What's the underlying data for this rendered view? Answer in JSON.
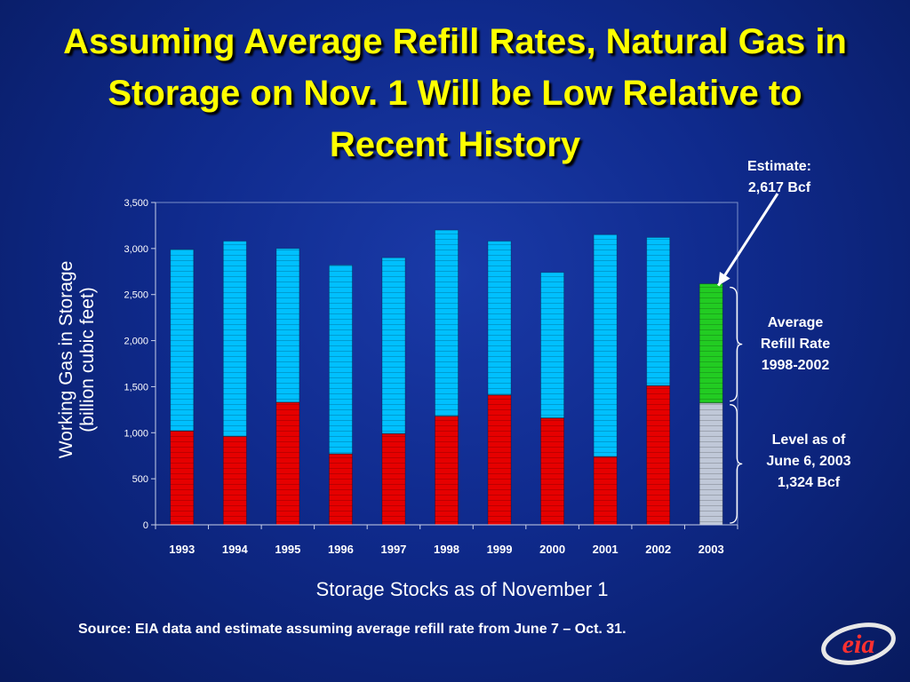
{
  "slide": {
    "title_lines": [
      "Assuming Average Refill Rates, Natural Gas in",
      "Storage on Nov. 1 Will be Low Relative to",
      "Recent History"
    ],
    "source": "Source: EIA data and estimate assuming average refill rate from June 7 – Oct. 31.",
    "logo_text": "eia"
  },
  "annotations": {
    "estimate": [
      "Estimate:",
      "2,617 Bcf"
    ],
    "average_refill": [
      "Average",
      "Refill Rate",
      "1998-2002"
    ],
    "level": [
      "Level as of",
      "June 6, 2003",
      "1,324 Bcf"
    ]
  },
  "colors": {
    "background": "#0f2a8c",
    "title": "#ffff00",
    "base_segment": "#e60000",
    "refill_segment": "#00c0ff",
    "level_2003": "#c0c8d8",
    "estimate_2003": "#22cc22"
  },
  "chart_data": {
    "type": "bar",
    "stacked": true,
    "xlabel": "Storage Stocks as of November 1",
    "ylabel": "Working Gas in Storage (billion cubic feet)",
    "ylim": [
      0,
      3500
    ],
    "yticks": [
      0,
      500,
      1000,
      1500,
      2000,
      2500,
      3000,
      3500
    ],
    "ytick_labels": [
      "0",
      "500",
      "1,000",
      "1,500",
      "2,000",
      "2,500",
      "3,000",
      "3,500"
    ],
    "categories": [
      "1993",
      "1994",
      "1995",
      "1996",
      "1997",
      "1998",
      "1999",
      "2000",
      "2001",
      "2002",
      "2003"
    ],
    "totals": [
      2990,
      3080,
      3000,
      2820,
      2900,
      3200,
      3080,
      2740,
      3150,
      3120,
      2617
    ],
    "base": [
      1020,
      960,
      1330,
      770,
      990,
      1180,
      1410,
      1160,
      740,
      1510,
      1324
    ],
    "grid": false
  }
}
